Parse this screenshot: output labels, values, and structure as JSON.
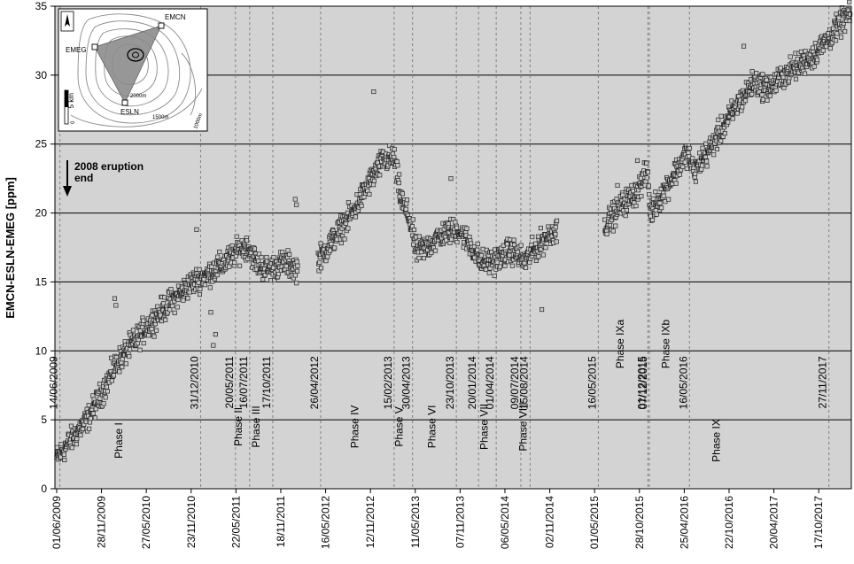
{
  "chart_data": {
    "type": "scatter",
    "ylabel": "EMCN-ESLN-EMEG [ppm]",
    "xlabel": "",
    "ylim": [
      0,
      35
    ],
    "yticks": [
      0,
      5,
      10,
      15,
      20,
      25,
      30,
      35
    ],
    "grid": "horizontal",
    "xlim": [
      "2009-05-25",
      "2018-02-25"
    ],
    "xtick_labels": [
      "01/06/2009",
      "28/11/2009",
      "27/05/2010",
      "23/11/2010",
      "22/05/2011",
      "18/11/2011",
      "16/05/2012",
      "12/11/2012",
      "11/05/2013",
      "07/11/2013",
      "06/05/2014",
      "02/11/2014",
      "01/05/2015",
      "28/10/2015",
      "25/04/2016",
      "22/10/2016",
      "20/04/2017",
      "17/10/2017"
    ],
    "event_lines": [
      {
        "date": "2009-06-14",
        "label": "14/06/2009"
      },
      {
        "date": "2010-12-31",
        "label": "31/12/2010"
      },
      {
        "date": "2011-05-20",
        "label": "20/05/2011"
      },
      {
        "date": "2011-07-16",
        "label": "16/07/2011"
      },
      {
        "date": "2011-10-17",
        "label": "17/10/2011"
      },
      {
        "date": "2012-04-26",
        "label": "26/04/2012"
      },
      {
        "date": "2013-02-15",
        "label": "15/02/2013"
      },
      {
        "date": "2013-04-30",
        "label": "30/04/2013"
      },
      {
        "date": "2013-10-23",
        "label": "23/10/2013"
      },
      {
        "date": "2014-01-20",
        "label": "20/01/2014"
      },
      {
        "date": "2014-04-01",
        "label": "01/04/2014"
      },
      {
        "date": "2014-07-09",
        "label": "09/07/2014"
      },
      {
        "date": "2014-08-15",
        "label": "15/08/2014"
      },
      {
        "date": "2015-05-16",
        "label": "16/05/2015"
      },
      {
        "date": "2015-12-01",
        "label": "01/12/2015"
      },
      {
        "date": "2015-12-07",
        "label": "07/12/2015"
      },
      {
        "date": "2016-05-16",
        "label": "16/05/2016"
      },
      {
        "date": "2017-11-27",
        "label": "27/11/2017"
      }
    ],
    "phases": [
      {
        "label": "Phase I",
        "date": "2010-02-20",
        "y": 3.5
      },
      {
        "label": "Phase II",
        "date": "2011-06-15",
        "y": 4.5
      },
      {
        "label": "Phase III",
        "date": "2011-08-25",
        "y": 4.5
      },
      {
        "label": "Phase IV",
        "date": "2012-09-25",
        "y": 4.5
      },
      {
        "label": "Phase V",
        "date": "2013-03-22",
        "y": 4.5
      },
      {
        "label": "Phase VI",
        "date": "2013-07-30",
        "y": 4.5
      },
      {
        "label": "Phase VII",
        "date": "2014-02-25",
        "y": 4.5
      },
      {
        "label": "Phase VIII",
        "date": "2014-08-01",
        "y": 4.5
      },
      {
        "label": "Phase IXa",
        "date": "2015-08-25",
        "y": 10.5
      },
      {
        "label": "Phase IXb",
        "date": "2016-02-25",
        "y": 10.5
      },
      {
        "label": "Phase IX",
        "date": "2016-09-15",
        "y": 3.5
      }
    ],
    "annotation": {
      "text": [
        "2008 eruption",
        "end"
      ]
    },
    "series": [
      {
        "marker": "open-square",
        "trend": [
          [
            "2009-06-01",
            2.2
          ],
          [
            "2009-08-01",
            3.6
          ],
          [
            "2009-10-01",
            5.0
          ],
          [
            "2009-12-01",
            7.0
          ],
          [
            "2010-02-01",
            9.2
          ],
          [
            "2010-04-01",
            10.5
          ],
          [
            "2010-06-01",
            11.8
          ],
          [
            "2010-08-01",
            13.0
          ],
          [
            "2010-10-01",
            14.0
          ],
          [
            "2010-12-01",
            15.0
          ],
          [
            "2011-02-01",
            15.6
          ],
          [
            "2011-04-01",
            16.3
          ],
          [
            "2011-06-01",
            17.3
          ],
          [
            "2011-07-10",
            17.6
          ],
          [
            "2011-08-15",
            16.3
          ],
          [
            "2011-10-01",
            15.9
          ],
          [
            "2011-12-01",
            16.4
          ],
          [
            "2012-01-20",
            16.0
          ],
          [
            "2012-04-26",
            16.8
          ],
          [
            "2012-07-01",
            18.5
          ],
          [
            "2012-09-01",
            20.0
          ],
          [
            "2012-11-01",
            22.0
          ],
          [
            "2013-01-01",
            23.8
          ],
          [
            "2013-02-15",
            24.0
          ],
          [
            "2013-03-15",
            21.0
          ],
          [
            "2013-04-20",
            19.5
          ],
          [
            "2013-05-15",
            17.2
          ],
          [
            "2013-07-01",
            17.6
          ],
          [
            "2013-09-01",
            18.5
          ],
          [
            "2013-11-01",
            18.8
          ],
          [
            "2013-12-15",
            17.8
          ],
          [
            "2014-02-01",
            16.4
          ],
          [
            "2014-04-01",
            16.6
          ],
          [
            "2014-06-01",
            17.3
          ],
          [
            "2014-07-25",
            16.5
          ],
          [
            "2014-09-15",
            17.6
          ],
          [
            "2014-11-15",
            18.7
          ],
          [
            "2015-06-15",
            19.2
          ],
          [
            "2015-08-15",
            20.5
          ],
          [
            "2015-10-15",
            21.5
          ],
          [
            "2015-12-01",
            23.0
          ],
          [
            "2015-12-10",
            20.0
          ],
          [
            "2016-02-01",
            21.5
          ],
          [
            "2016-04-01",
            23.3
          ],
          [
            "2016-05-10",
            24.5
          ],
          [
            "2016-06-01",
            23.0
          ],
          [
            "2016-08-01",
            24.5
          ],
          [
            "2016-10-01",
            26.3
          ],
          [
            "2016-12-01",
            28.0
          ],
          [
            "2017-02-01",
            29.5
          ],
          [
            "2017-04-01",
            29.0
          ],
          [
            "2017-06-01",
            30.0
          ],
          [
            "2017-08-01",
            30.8
          ],
          [
            "2017-10-01",
            31.5
          ],
          [
            "2017-12-01",
            32.8
          ],
          [
            "2018-02-20",
            34.5
          ]
        ],
        "outliers": [
          [
            "2010-01-20",
            13.8
          ],
          [
            "2010-01-25",
            13.3
          ],
          [
            "2010-12-15",
            18.8
          ],
          [
            "2011-02-10",
            12.8
          ],
          [
            "2011-02-20",
            10.4
          ],
          [
            "2011-03-01",
            11.2
          ],
          [
            "2012-01-15",
            21.0
          ],
          [
            "2012-01-20",
            20.6
          ],
          [
            "2012-11-25",
            28.8
          ],
          [
            "2013-10-01",
            22.5
          ],
          [
            "2014-10-01",
            13.0
          ],
          [
            "2016-12-20",
            32.1
          ],
          [
            "2015-08-01",
            22.0
          ],
          [
            "2015-10-20",
            23.8
          ]
        ],
        "gaps": [
          [
            "2012-01-25",
            "2012-04-15"
          ],
          [
            "2014-12-01",
            "2015-06-10"
          ]
        ]
      }
    ]
  },
  "inset": {
    "stations": [
      "EMCN",
      "EMEG",
      "ESLN"
    ],
    "scale_label": "5 km",
    "scale_zero": "0",
    "contours": [
      "2000m",
      "1500m",
      "1000m"
    ]
  },
  "colors": {
    "plot_bg": "#d3d3d3",
    "grid": "#000000",
    "event_line": "#808080",
    "marker_fill": "#c8c8c8",
    "marker_edge": "#222222",
    "triangle": "#8c8c8c"
  }
}
